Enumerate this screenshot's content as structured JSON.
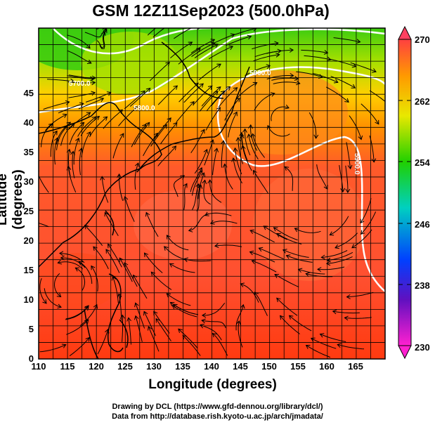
{
  "title": "GSM 12Z11Sep2023 (500.0hPa)",
  "x_label": "Longitude (degrees)",
  "y_label": "Latitude  (degrees)",
  "credits": [
    "Drawing by DCL (https://www.gfd-dennou.org/library/dcl/)",
    "Data from http://database.rish.kyoto-u.ac.jp/arch/jmadata/"
  ],
  "x_ticks": [
    "110",
    "115",
    "120",
    "125",
    "130",
    "135",
    "140",
    "145",
    "150",
    "155",
    "160",
    "165"
  ],
  "y_ticks": [
    "0",
    "5",
    "10",
    "15",
    "20",
    "25",
    "30",
    "35",
    "40",
    "45"
  ],
  "colorbar_ticks": [
    "230",
    "238",
    "246",
    "254",
    "262",
    "270"
  ],
  "contour_labels": [
    "5700.0",
    "5800.0",
    "5900.0",
    "5900.0"
  ],
  "map_extent": {
    "lon": [
      110,
      170
    ],
    "lat": [
      0,
      50
    ]
  },
  "colorbar_range": [
    230,
    270
  ],
  "colors": {
    "warm_low": "#ff4a1a",
    "warm_high": "#ff6a4a",
    "orange": "#ff9a00",
    "yellow": "#e8e800",
    "green": "#3ccc10",
    "cyan": "#00d0c0",
    "blue": "#0040ff",
    "magenta": "#ff20d0"
  }
}
